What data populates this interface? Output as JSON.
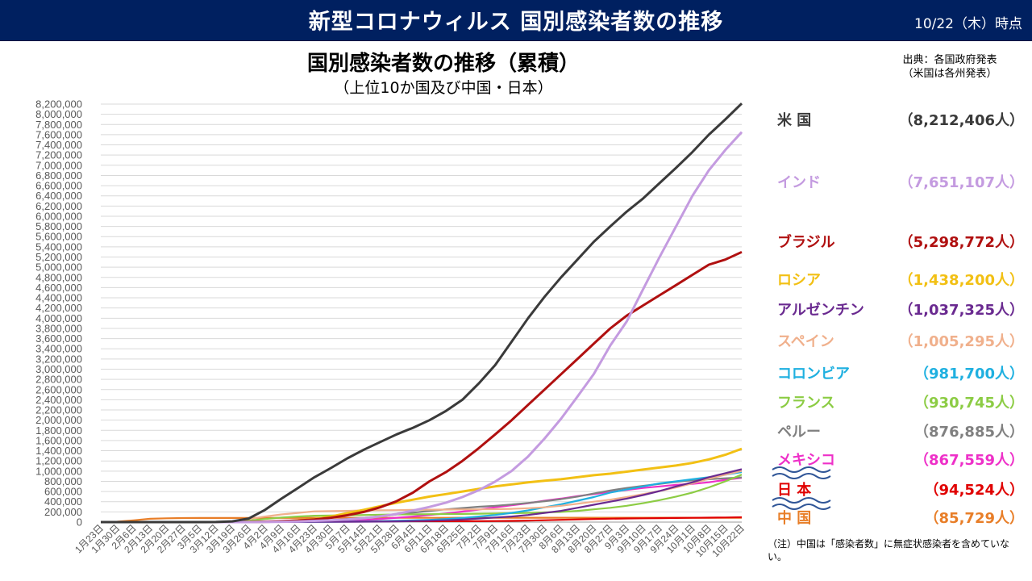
{
  "header": {
    "title": "新型コロナウィルス 国別感染者数の推移",
    "date": "10/22（木）時点"
  },
  "source": {
    "line1": "出典：各国政府発表",
    "line2": "（米国は各州発表）"
  },
  "note": "（注）中国は「感染者数」に無症状感染者を含めていない。",
  "colors": {
    "header_bg": "#002060",
    "usa": "#3a3a3a",
    "india": "#c49be0",
    "brazil": "#b01010",
    "russia": "#f2c014",
    "argentina": "#6a2a90",
    "spain": "#f0b08c",
    "colombia": "#1fb0e0",
    "france": "#8ccc44",
    "peru": "#808080",
    "mexico": "#ee30c8",
    "japan": "#e00000",
    "china": "#e87e28"
  },
  "chart_data": {
    "type": "line",
    "title": "国別感染者数の推移（累積）",
    "subtitle": "（上位10か国及び中国・日本）",
    "ylim": [
      0,
      8200000
    ],
    "y_ticks": [
      "0",
      "200,000",
      "400,000",
      "600,000",
      "800,000",
      "1,000,000",
      "1,200,000",
      "1,400,000",
      "1,600,000",
      "1,800,000",
      "2,000,000",
      "2,200,000",
      "2,400,000",
      "2,600,000",
      "2,800,000",
      "3,000,000",
      "3,200,000",
      "3,400,000",
      "3,600,000",
      "3,800,000",
      "4,000,000",
      "4,200,000",
      "4,400,000",
      "4,600,000",
      "4,800,000",
      "5,000,000",
      "5,200,000",
      "5,400,000",
      "5,600,000",
      "5,800,000",
      "6,000,000",
      "6,200,000",
      "6,400,000",
      "6,600,000",
      "6,800,000",
      "7,000,000",
      "7,200,000",
      "7,400,000",
      "7,600,000",
      "7,800,000",
      "8,000,000",
      "8,200,000"
    ],
    "x": [
      "1月23日",
      "1月30日",
      "2月6日",
      "2月13日",
      "2月20日",
      "2月27日",
      "3月5日",
      "3月12日",
      "3月19日",
      "3月26日",
      "4月2日",
      "4月9日",
      "4月16日",
      "4月23日",
      "4月30日",
      "5月7日",
      "5月14日",
      "5月21日",
      "5月28日",
      "6月4日",
      "6月11日",
      "6月18日",
      "6月25日",
      "7月2日",
      "7月9日",
      "7月16日",
      "7月23日",
      "7月30日",
      "8月6日",
      "8月13日",
      "8月20日",
      "8月27日",
      "9月3日",
      "9月10日",
      "9月17日",
      "9月24日",
      "10月1日",
      "10月8日",
      "10月15日",
      "10月22日"
    ],
    "grid": true,
    "series": [
      {
        "key": "usa",
        "name": "米 国",
        "total": "（8,212,406人）",
        "values": [
          0,
          0,
          0,
          0,
          0,
          0,
          0,
          1000,
          14000,
          70000,
          240000,
          460000,
          670000,
          880000,
          1060000,
          1250000,
          1420000,
          1570000,
          1720000,
          1850000,
          2000000,
          2180000,
          2400000,
          2720000,
          3080000,
          3540000,
          4000000,
          4420000,
          4800000,
          5150000,
          5500000,
          5800000,
          6090000,
          6350000,
          6650000,
          6950000,
          7260000,
          7600000,
          7900000,
          8212406
        ]
      },
      {
        "key": "india",
        "name": "インド",
        "total": "（7,651,107人）",
        "values": [
          0,
          0,
          0,
          0,
          0,
          0,
          0,
          0,
          0,
          0,
          2000,
          6000,
          13000,
          23000,
          35000,
          53000,
          78000,
          112000,
          158000,
          226000,
          297000,
          381000,
          490000,
          626000,
          794000,
          1003000,
          1287000,
          1638000,
          2027000,
          2461000,
          2905000,
          3463000,
          3936000,
          4570000,
          5200000,
          5800000,
          6400000,
          6900000,
          7300000,
          7651107
        ]
      },
      {
        "key": "brazil",
        "name": "ブラジル",
        "total": "（5,298,772人）",
        "values": [
          0,
          0,
          0,
          0,
          0,
          0,
          0,
          0,
          0,
          3000,
          8000,
          18000,
          30000,
          50000,
          85000,
          135000,
          200000,
          290000,
          410000,
          580000,
          800000,
          980000,
          1200000,
          1450000,
          1720000,
          2000000,
          2300000,
          2600000,
          2900000,
          3200000,
          3500000,
          3800000,
          4050000,
          4250000,
          4450000,
          4650000,
          4850000,
          5050000,
          5150000,
          5298772
        ]
      },
      {
        "key": "russia",
        "name": "ロシア",
        "total": "（1,438,200人）",
        "values": [
          0,
          0,
          0,
          0,
          0,
          0,
          0,
          0,
          0,
          1000,
          5000,
          15000,
          35000,
          60000,
          110000,
          175000,
          240000,
          310000,
          380000,
          440000,
          500000,
          550000,
          600000,
          650000,
          700000,
          740000,
          780000,
          810000,
          840000,
          880000,
          920000,
          950000,
          990000,
          1030000,
          1070000,
          1110000,
          1160000,
          1230000,
          1320000,
          1438200
        ]
      },
      {
        "key": "argentina",
        "name": "アルゼンチン",
        "total": "（1,037,325人）",
        "values": [
          0,
          0,
          0,
          0,
          0,
          0,
          0,
          0,
          0,
          0,
          1000,
          2000,
          3000,
          4000,
          5000,
          6000,
          8000,
          10000,
          15000,
          21000,
          27000,
          37000,
          50000,
          70000,
          90000,
          110000,
          140000,
          180000,
          220000,
          280000,
          340000,
          400000,
          460000,
          530000,
          610000,
          700000,
          780000,
          880000,
          960000,
          1037325
        ]
      },
      {
        "key": "spain",
        "name": "スペイン",
        "total": "（1,005,295人）",
        "values": [
          0,
          0,
          0,
          0,
          0,
          0,
          0,
          3000,
          18000,
          60000,
          110000,
          150000,
          180000,
          210000,
          215000,
          220000,
          230000,
          232000,
          235000,
          240000,
          243000,
          245000,
          248000,
          250000,
          253000,
          260000,
          272000,
          290000,
          320000,
          360000,
          400000,
          440000,
          490000,
          550000,
          610000,
          680000,
          760000,
          850000,
          930000,
          1005295
        ]
      },
      {
        "key": "colombia",
        "name": "コロンビア",
        "total": "（981,700人）",
        "values": [
          0,
          0,
          0,
          0,
          0,
          0,
          0,
          0,
          0,
          0,
          1000,
          2000,
          3000,
          4500,
          6500,
          9000,
          13000,
          17000,
          25000,
          33000,
          45000,
          60000,
          80000,
          110000,
          140000,
          180000,
          230000,
          290000,
          350000,
          420000,
          490000,
          580000,
          640000,
          700000,
          760000,
          800000,
          840000,
          880000,
          930000,
          981700
        ]
      },
      {
        "key": "france",
        "name": "フランス",
        "total": "（930,745人）",
        "values": [
          0,
          0,
          0,
          0,
          0,
          0,
          1000,
          3000,
          10000,
          30000,
          60000,
          90000,
          110000,
          125000,
          130000,
          135000,
          140000,
          145000,
          150000,
          152000,
          155000,
          158000,
          160000,
          165000,
          170000,
          175000,
          180000,
          190000,
          200000,
          220000,
          250000,
          280000,
          320000,
          370000,
          430000,
          500000,
          580000,
          680000,
          800000,
          930745
        ]
      },
      {
        "key": "peru",
        "name": "ペルー",
        "total": "（876,885人）",
        "values": [
          0,
          0,
          0,
          0,
          0,
          0,
          0,
          0,
          0,
          0,
          1500,
          5000,
          13000,
          22000,
          36000,
          60000,
          85000,
          110000,
          150000,
          185000,
          220000,
          250000,
          275000,
          300000,
          320000,
          345000,
          375000,
          410000,
          450000,
          500000,
          560000,
          620000,
          670000,
          710000,
          750000,
          790000,
          820000,
          840000,
          860000,
          876885
        ]
      },
      {
        "key": "mexico",
        "name": "メキシコ",
        "total": "（867,559人）",
        "values": [
          0,
          0,
          0,
          0,
          0,
          0,
          0,
          0,
          0,
          500,
          1500,
          3500,
          7000,
          12000,
          20000,
          30000,
          42000,
          60000,
          85000,
          110000,
          140000,
          170000,
          205000,
          245000,
          290000,
          330000,
          370000,
          420000,
          460000,
          510000,
          550000,
          590000,
          630000,
          670000,
          700000,
          730000,
          750000,
          780000,
          830000,
          867559
        ]
      },
      {
        "key": "japan",
        "name": "日 本",
        "total": "（94,524人）",
        "values": [
          0,
          0,
          0,
          0,
          100,
          200,
          350,
          600,
          900,
          1500,
          2700,
          5000,
          9000,
          12000,
          14000,
          15500,
          16000,
          16500,
          16800,
          17000,
          17300,
          17700,
          18200,
          19000,
          20500,
          23500,
          29000,
          36000,
          45000,
          53000,
          60000,
          66000,
          71000,
          75000,
          78000,
          81000,
          84000,
          87000,
          91000,
          94524
        ]
      },
      {
        "key": "china",
        "name": "中 国",
        "total": "（85,729人）",
        "values": [
          600,
          8000,
          35000,
          65000,
          75000,
          78500,
          80500,
          81000,
          81200,
          81500,
          81800,
          82000,
          83000,
          83800,
          83900,
          84000,
          84000,
          84100,
          84100,
          84200,
          84300,
          84500,
          84700,
          84800,
          85000,
          85200,
          85300,
          85400,
          85500,
          85500,
          85600,
          85600,
          85600,
          85600,
          85600,
          85650,
          85700,
          85700,
          85729,
          85729
        ]
      }
    ]
  }
}
